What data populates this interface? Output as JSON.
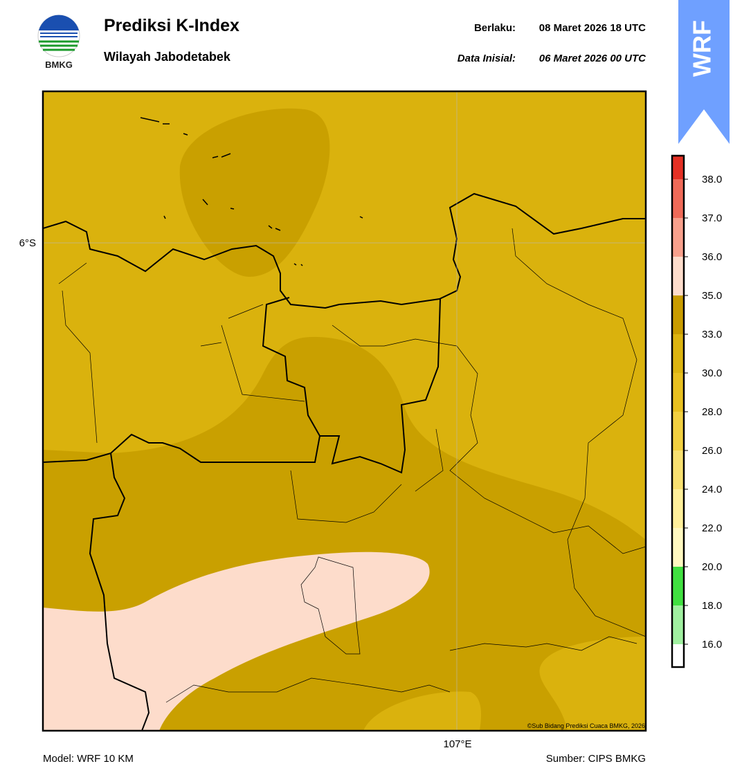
{
  "header": {
    "title": "Prediksi K-Index",
    "subtitle": "Wilayah Jabodetabek",
    "valid_label": "Berlaku:",
    "valid_time": "08 Maret 2026 18 UTC",
    "init_label": "Data Inisial:",
    "init_time": "06 Maret 2026 00 UTC",
    "logo_text": "BMKG",
    "badge": "WRF"
  },
  "map": {
    "lat_label": "6°S",
    "lon_label": "107°E",
    "credit": "©Sub Bidang Prediksi Cuaca BMKG, 2026"
  },
  "colorbar": {
    "ticks": [
      {
        "value": 16,
        "label": "16.0"
      },
      {
        "value": 18,
        "label": "18.0"
      },
      {
        "value": 20,
        "label": "20.0"
      },
      {
        "value": 22,
        "label": "22.0"
      },
      {
        "value": 24,
        "label": "24.0"
      },
      {
        "value": 26,
        "label": "26.0"
      },
      {
        "value": 28,
        "label": "28.0"
      },
      {
        "value": 30,
        "label": "30.0"
      },
      {
        "value": 33,
        "label": "33.0"
      },
      {
        "value": 35,
        "label": "35.0"
      },
      {
        "value": 36,
        "label": "36.0"
      },
      {
        "value": 37,
        "label": "37.0"
      },
      {
        "value": 38,
        "label": "38.0"
      }
    ],
    "colors": [
      "#ffffff",
      "#a0f0a0",
      "#40e040",
      "#fff8c0",
      "#ffef9a",
      "#f8e070",
      "#f2d040",
      "#e8c020",
      "#dcb410",
      "#c99c00",
      "#fddccb",
      "#f8a08c",
      "#f06a58",
      "#e43024"
    ]
  },
  "footer": {
    "model": "Model: WRF 10 KM",
    "source": "Sumber: CIPS BMKG"
  }
}
